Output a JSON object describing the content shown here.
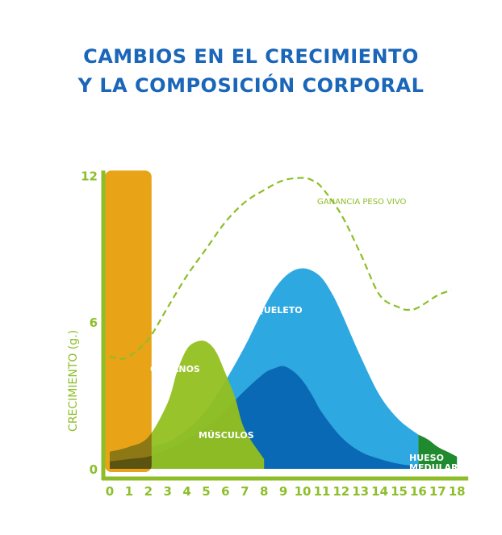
{
  "title_line1": "CAMBIOS EN EL CRECIMIENTO",
  "title_line2": "Y LA COMPOSICIÓN CORPORAL",
  "chart_data": {
    "type": "area",
    "ylabel": "CRECIMIENTO (g.)",
    "xlim": [
      0,
      18
    ],
    "ylim": [
      0,
      12
    ],
    "x_ticks": [
      "0",
      "1",
      "2",
      "3",
      "4",
      "5",
      "6",
      "7",
      "8",
      "9",
      "10",
      "11",
      "12",
      "13",
      "14",
      "15",
      "16",
      "17",
      "18"
    ],
    "y_ticks": [
      "0",
      "6",
      "12"
    ],
    "colors": {
      "axis": "#8dbe2a",
      "cerebro": "#e8a317",
      "organos": "#93c01f",
      "esqueleto": "#2ea8e0",
      "musculos": "#0a69b5",
      "hueso_medular": "#1f8a2e",
      "ganancia": "#8dbe2a"
    },
    "bar": {
      "x": [
        0,
        2
      ],
      "y": [
        0,
        12.2
      ]
    },
    "series": [
      {
        "name": "ÓRGANOS",
        "x": [
          0,
          1,
          2,
          3,
          3.5,
          4,
          4.5,
          5,
          5.5,
          6,
          6.5,
          7,
          8
        ],
        "y": [
          0.7,
          0.9,
          1.3,
          2.7,
          4.0,
          4.9,
          5.2,
          5.2,
          4.8,
          3.9,
          2.9,
          1.6,
          0.4
        ]
      },
      {
        "name": "ESQUELETO",
        "x": [
          0,
          1,
          2,
          3,
          4,
          5,
          6,
          7,
          7.5,
          8,
          8.5,
          9,
          9.5,
          10,
          10.5,
          11,
          11.5,
          12,
          13,
          14,
          15,
          16
        ],
        "y": [
          0.6,
          0.8,
          0.9,
          1.1,
          1.6,
          2.4,
          3.6,
          5.0,
          5.8,
          6.6,
          7.3,
          7.8,
          8.1,
          8.2,
          8.1,
          7.8,
          7.2,
          6.4,
          4.6,
          3.0,
          2.0,
          1.4
        ]
      },
      {
        "name": "MÚSCULOS",
        "x": [
          0,
          1,
          2,
          3,
          4,
          5,
          6,
          7,
          8,
          8.5,
          9,
          9.5,
          10,
          10.5,
          11,
          12,
          13,
          14,
          15,
          16
        ],
        "y": [
          0.3,
          0.4,
          0.5,
          0.8,
          1.2,
          1.7,
          2.4,
          3.2,
          3.9,
          4.1,
          4.2,
          4.0,
          3.6,
          3.0,
          2.3,
          1.3,
          0.7,
          0.4,
          0.2,
          0.1
        ]
      },
      {
        "name": "HUESO MEDULAR",
        "x": [
          16,
          16.5,
          17,
          17.5,
          18
        ],
        "y": [
          1.4,
          1.2,
          0.9,
          0.7,
          0.5
        ]
      },
      {
        "name": "GANANCIA PESO VIVO",
        "x": [
          0,
          0.5,
          1,
          2,
          3,
          4,
          5,
          6,
          7,
          8,
          9,
          10,
          10.5,
          11,
          12,
          13,
          14,
          15,
          15.5,
          16,
          17,
          17.7
        ],
        "y": [
          4.6,
          4.5,
          4.6,
          5.3,
          6.6,
          7.9,
          9.0,
          10.1,
          10.9,
          11.4,
          11.8,
          11.9,
          11.8,
          11.5,
          10.4,
          8.8,
          7.1,
          6.6,
          6.5,
          6.6,
          7.1,
          7.3
        ]
      }
    ],
    "labels": [
      "ÓRGANOS",
      "ESQUELETO",
      "MÚSCULOS",
      "HUESO",
      "MEDULAR",
      "GANANCIA PESO VIVO"
    ],
    "grid": false,
    "legend": "none"
  }
}
